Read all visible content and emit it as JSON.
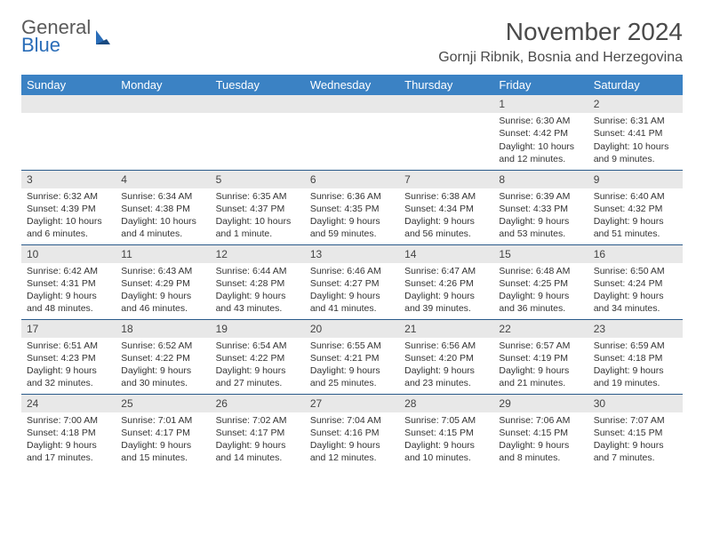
{
  "brand": {
    "line1": "General",
    "line2": "Blue"
  },
  "title": "November 2024",
  "location": "Gornji Ribnik, Bosnia and Herzegovina",
  "colors": {
    "header_bg": "#3b82c4",
    "header_text": "#ffffff",
    "row_divider": "#2a5a8a",
    "daynum_bg": "#e8e8e8",
    "text": "#333333",
    "brand_gray": "#5a5a5a",
    "brand_blue": "#2a6db8"
  },
  "weekdays": [
    "Sunday",
    "Monday",
    "Tuesday",
    "Wednesday",
    "Thursday",
    "Friday",
    "Saturday"
  ],
  "weeks": [
    [
      {
        "day": "",
        "lines": []
      },
      {
        "day": "",
        "lines": []
      },
      {
        "day": "",
        "lines": []
      },
      {
        "day": "",
        "lines": []
      },
      {
        "day": "",
        "lines": []
      },
      {
        "day": "1",
        "lines": [
          "Sunrise: 6:30 AM",
          "Sunset: 4:42 PM",
          "Daylight: 10 hours and 12 minutes."
        ]
      },
      {
        "day": "2",
        "lines": [
          "Sunrise: 6:31 AM",
          "Sunset: 4:41 PM",
          "Daylight: 10 hours and 9 minutes."
        ]
      }
    ],
    [
      {
        "day": "3",
        "lines": [
          "Sunrise: 6:32 AM",
          "Sunset: 4:39 PM",
          "Daylight: 10 hours and 6 minutes."
        ]
      },
      {
        "day": "4",
        "lines": [
          "Sunrise: 6:34 AM",
          "Sunset: 4:38 PM",
          "Daylight: 10 hours and 4 minutes."
        ]
      },
      {
        "day": "5",
        "lines": [
          "Sunrise: 6:35 AM",
          "Sunset: 4:37 PM",
          "Daylight: 10 hours and 1 minute."
        ]
      },
      {
        "day": "6",
        "lines": [
          "Sunrise: 6:36 AM",
          "Sunset: 4:35 PM",
          "Daylight: 9 hours and 59 minutes."
        ]
      },
      {
        "day": "7",
        "lines": [
          "Sunrise: 6:38 AM",
          "Sunset: 4:34 PM",
          "Daylight: 9 hours and 56 minutes."
        ]
      },
      {
        "day": "8",
        "lines": [
          "Sunrise: 6:39 AM",
          "Sunset: 4:33 PM",
          "Daylight: 9 hours and 53 minutes."
        ]
      },
      {
        "day": "9",
        "lines": [
          "Sunrise: 6:40 AM",
          "Sunset: 4:32 PM",
          "Daylight: 9 hours and 51 minutes."
        ]
      }
    ],
    [
      {
        "day": "10",
        "lines": [
          "Sunrise: 6:42 AM",
          "Sunset: 4:31 PM",
          "Daylight: 9 hours and 48 minutes."
        ]
      },
      {
        "day": "11",
        "lines": [
          "Sunrise: 6:43 AM",
          "Sunset: 4:29 PM",
          "Daylight: 9 hours and 46 minutes."
        ]
      },
      {
        "day": "12",
        "lines": [
          "Sunrise: 6:44 AM",
          "Sunset: 4:28 PM",
          "Daylight: 9 hours and 43 minutes."
        ]
      },
      {
        "day": "13",
        "lines": [
          "Sunrise: 6:46 AM",
          "Sunset: 4:27 PM",
          "Daylight: 9 hours and 41 minutes."
        ]
      },
      {
        "day": "14",
        "lines": [
          "Sunrise: 6:47 AM",
          "Sunset: 4:26 PM",
          "Daylight: 9 hours and 39 minutes."
        ]
      },
      {
        "day": "15",
        "lines": [
          "Sunrise: 6:48 AM",
          "Sunset: 4:25 PM",
          "Daylight: 9 hours and 36 minutes."
        ]
      },
      {
        "day": "16",
        "lines": [
          "Sunrise: 6:50 AM",
          "Sunset: 4:24 PM",
          "Daylight: 9 hours and 34 minutes."
        ]
      }
    ],
    [
      {
        "day": "17",
        "lines": [
          "Sunrise: 6:51 AM",
          "Sunset: 4:23 PM",
          "Daylight: 9 hours and 32 minutes."
        ]
      },
      {
        "day": "18",
        "lines": [
          "Sunrise: 6:52 AM",
          "Sunset: 4:22 PM",
          "Daylight: 9 hours and 30 minutes."
        ]
      },
      {
        "day": "19",
        "lines": [
          "Sunrise: 6:54 AM",
          "Sunset: 4:22 PM",
          "Daylight: 9 hours and 27 minutes."
        ]
      },
      {
        "day": "20",
        "lines": [
          "Sunrise: 6:55 AM",
          "Sunset: 4:21 PM",
          "Daylight: 9 hours and 25 minutes."
        ]
      },
      {
        "day": "21",
        "lines": [
          "Sunrise: 6:56 AM",
          "Sunset: 4:20 PM",
          "Daylight: 9 hours and 23 minutes."
        ]
      },
      {
        "day": "22",
        "lines": [
          "Sunrise: 6:57 AM",
          "Sunset: 4:19 PM",
          "Daylight: 9 hours and 21 minutes."
        ]
      },
      {
        "day": "23",
        "lines": [
          "Sunrise: 6:59 AM",
          "Sunset: 4:18 PM",
          "Daylight: 9 hours and 19 minutes."
        ]
      }
    ],
    [
      {
        "day": "24",
        "lines": [
          "Sunrise: 7:00 AM",
          "Sunset: 4:18 PM",
          "Daylight: 9 hours and 17 minutes."
        ]
      },
      {
        "day": "25",
        "lines": [
          "Sunrise: 7:01 AM",
          "Sunset: 4:17 PM",
          "Daylight: 9 hours and 15 minutes."
        ]
      },
      {
        "day": "26",
        "lines": [
          "Sunrise: 7:02 AM",
          "Sunset: 4:17 PM",
          "Daylight: 9 hours and 14 minutes."
        ]
      },
      {
        "day": "27",
        "lines": [
          "Sunrise: 7:04 AM",
          "Sunset: 4:16 PM",
          "Daylight: 9 hours and 12 minutes."
        ]
      },
      {
        "day": "28",
        "lines": [
          "Sunrise: 7:05 AM",
          "Sunset: 4:15 PM",
          "Daylight: 9 hours and 10 minutes."
        ]
      },
      {
        "day": "29",
        "lines": [
          "Sunrise: 7:06 AM",
          "Sunset: 4:15 PM",
          "Daylight: 9 hours and 8 minutes."
        ]
      },
      {
        "day": "30",
        "lines": [
          "Sunrise: 7:07 AM",
          "Sunset: 4:15 PM",
          "Daylight: 9 hours and 7 minutes."
        ]
      }
    ]
  ]
}
